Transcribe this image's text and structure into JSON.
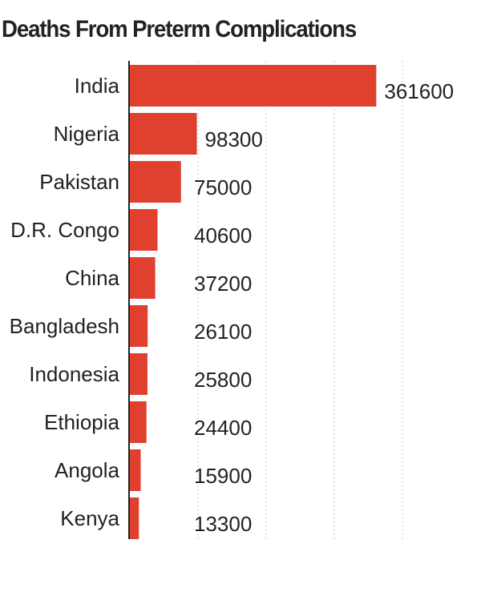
{
  "chart_data": {
    "type": "bar",
    "orientation": "horizontal",
    "title": "Deaths From Preterm Complications",
    "categories": [
      "India",
      "Nigeria",
      "Pakistan",
      "D.R. Congo",
      "China",
      "Bangladesh",
      "Indonesia",
      "Ethiopia",
      "Angola",
      "Kenya"
    ],
    "values": [
      361600,
      98300,
      75000,
      40600,
      37200,
      26100,
      25800,
      24400,
      15900,
      13300
    ],
    "xlim": [
      0,
      400000
    ],
    "gridlines": [
      100000,
      200000,
      300000,
      400000
    ],
    "grid": true,
    "bar_color": "#e0412f",
    "xlabel": "",
    "ylabel": ""
  }
}
